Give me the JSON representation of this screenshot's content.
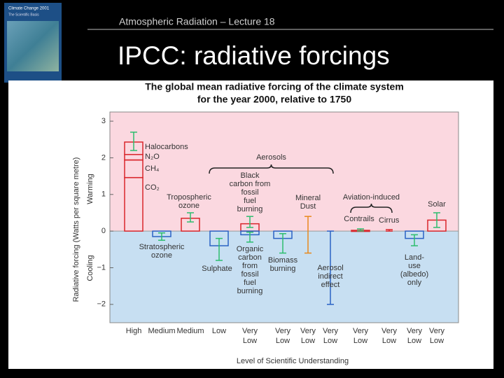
{
  "slide": {
    "header": "Atmospheric Radiation – Lecture 18",
    "title": "IPCC: radiative forcings",
    "thumbnail": {
      "title": "Climate Change 2001",
      "subtitle": "The Scientific Basis"
    }
  },
  "chart_data": {
    "type": "bar",
    "title": [
      "The global mean radiative forcing of the climate system",
      "for the year 2000, relative to 1750"
    ],
    "y_label": "Radiative forcing (Watts per square metre)",
    "warming_label": "Warming",
    "cooling_label": "Cooling",
    "x_label": "Level of Scientific Understanding",
    "ylim": [
      -2.5,
      3.25
    ],
    "yticks": [
      {
        "value": -2,
        "label": "−2"
      },
      {
        "value": -1,
        "label": "−1"
      },
      0,
      1,
      2,
      3
    ],
    "groups": [
      {
        "label": "Aerosols",
        "from": 3,
        "to": 7
      },
      {
        "label": "Aviation-induced",
        "from": 8,
        "to": 9
      }
    ],
    "columns": [
      {
        "losu": [
          "High"
        ],
        "forcings": [
          {
            "color": "#d9262b",
            "range": [
              2.2,
              2.7
            ],
            "segments": [
              {
                "name": "CO₂",
                "value": 1.46
              },
              {
                "name": "CH₄",
                "value": 0.48
              },
              {
                "name": "N₂O",
                "value": 0.15
              },
              {
                "name": "Halocarbons",
                "value": 0.34
              }
            ]
          }
        ]
      },
      {
        "losu": [
          "Medium"
        ],
        "forcings": [
          {
            "label": [
              "Stratospheric",
              "ozone"
            ],
            "value": -0.15,
            "range": [
              -0.25,
              -0.05
            ],
            "color": "#2a62c4"
          }
        ]
      },
      {
        "losu": [
          "Medium"
        ],
        "forcings": [
          {
            "label": [
              "Tropospheric",
              "ozone"
            ],
            "value": 0.35,
            "range": [
              0.25,
              0.5
            ],
            "color": "#d9262b"
          }
        ]
      },
      {
        "losu": [
          "Low"
        ],
        "forcings": [
          {
            "label": [
              "Sulphate"
            ],
            "value": -0.4,
            "range": [
              -0.8,
              -0.2
            ],
            "color": "#2a62c4"
          }
        ]
      },
      {
        "losu": [
          "Very",
          "Low"
        ],
        "forcings": [
          {
            "label": [
              "Black",
              "carbon from",
              "fossil",
              "fuel",
              "burning"
            ],
            "value": 0.2,
            "range": [
              0.1,
              0.4
            ],
            "color": "#d9262b"
          },
          {
            "label": [
              "Organic",
              "carbon",
              "from",
              "fossil",
              "fuel",
              "burning"
            ],
            "value": -0.1,
            "range": [
              -0.3,
              -0.03
            ],
            "color": "#2a62c4"
          }
        ]
      },
      {
        "losu": [
          "Very",
          "Low"
        ],
        "forcings": [
          {
            "label": [
              "Biomass",
              "burning"
            ],
            "value": -0.2,
            "range": [
              -0.6,
              -0.07
            ],
            "color": "#2a62c4"
          }
        ]
      },
      {
        "losu": [
          "Very",
          "Low"
        ],
        "forcings": [
          {
            "label": [
              "Mineral",
              "Dust"
            ],
            "range": [
              -0.6,
              0.4
            ],
            "color": "#e8891c"
          }
        ]
      },
      {
        "losu": [
          "Very",
          "Low"
        ],
        "forcings": [
          {
            "label": [
              "Aerosol",
              "indirect",
              "effect"
            ],
            "range": [
              -2,
              0
            ],
            "color": "#2a62c4"
          }
        ]
      },
      {
        "losu": [
          "Very",
          "Low"
        ],
        "forcings": [
          {
            "label": [
              "Contrails"
            ],
            "value": 0.02,
            "range": [
              0.005,
              0.06
            ],
            "color": "#d9262b"
          }
        ]
      },
      {
        "losu": [
          "Very",
          "Low"
        ],
        "forcings": [
          {
            "label": [
              "Cirrus"
            ],
            "range": [
              0,
              0.04
            ],
            "color": "#d9262b"
          }
        ]
      },
      {
        "losu": [
          "Very",
          "Low"
        ],
        "forcings": [
          {
            "label": [
              "Land-",
              "use",
              "(albedo)",
              "only"
            ],
            "value": -0.2,
            "range": [
              -0.4,
              -0.1
            ],
            "color": "#2a62c4"
          }
        ]
      },
      {
        "losu": [
          "Very",
          "Low"
        ],
        "forcings": [
          {
            "label": [
              "Solar"
            ],
            "value": 0.3,
            "range": [
              0.1,
              0.5
            ],
            "color": "#d9262b"
          }
        ]
      }
    ]
  }
}
